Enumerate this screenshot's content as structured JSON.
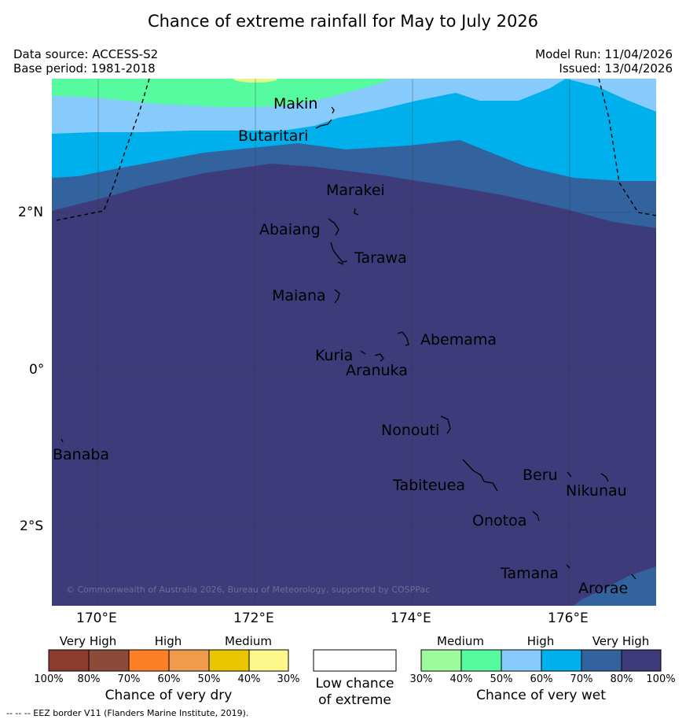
{
  "title": "Chance of extreme rainfall for May to July 2026",
  "meta": {
    "data_source": "Data source: ACCESS-S2",
    "base_period": "Base period: 1981-2018",
    "model_run": "Model Run: 11/04/2026",
    "issued": "Issued: 13/04/2026"
  },
  "map": {
    "lat_ticks": [
      "2°N",
      "0°",
      "2°S"
    ],
    "lon_ticks": [
      "170°E",
      "172°E",
      "174°E",
      "176°E"
    ],
    "places": [
      "Makin",
      "Butaritari",
      "Marakei",
      "Abaiang",
      "Tarawa",
      "Maiana",
      "Abemama",
      "Kuria",
      "Aranuka",
      "Nonouti",
      "Banaba",
      "Beru",
      "Tabiteuea",
      "Nikunau",
      "Onotoa",
      "Tamana",
      "Arorae"
    ],
    "copyright": "© Commonwealth of Australia 2026, Bureau of Meteorology, supported by COSPPac",
    "colors": {
      "dry_very_high_1": "#8e3b2f",
      "dry_very_high_2": "#8c4b3a",
      "dry_high_1": "#fd7f27",
      "dry_high_2": "#ee9b4c",
      "dry_medium_1": "#e9c600",
      "dry_medium_2": "#fdf68a",
      "wet_medium_1": "#9cfb9a",
      "wet_medium_2": "#55fb9e",
      "wet_high_1": "#86cbfb",
      "wet_high_2": "#00b0ec",
      "wet_very_high_1": "#33639f",
      "wet_very_high_2": "#3d3b79"
    }
  },
  "legend": {
    "dry": {
      "headers": [
        "Very High",
        "High",
        "Medium"
      ],
      "ticks": [
        "100%",
        "80%",
        "70%",
        "60%",
        "50%",
        "40%",
        "30%"
      ],
      "caption": "Chance of very dry"
    },
    "low": {
      "caption_line1": "Low chance",
      "caption_line2": "of extreme"
    },
    "wet": {
      "headers": [
        "Medium",
        "High",
        "Very High"
      ],
      "ticks": [
        "30%",
        "40%",
        "50%",
        "60%",
        "70%",
        "80%",
        "100%"
      ],
      "caption": "Chance of very wet"
    }
  },
  "footnote": "--  --  -- EEZ border V11 (Flanders Marine Institute, 2019)."
}
